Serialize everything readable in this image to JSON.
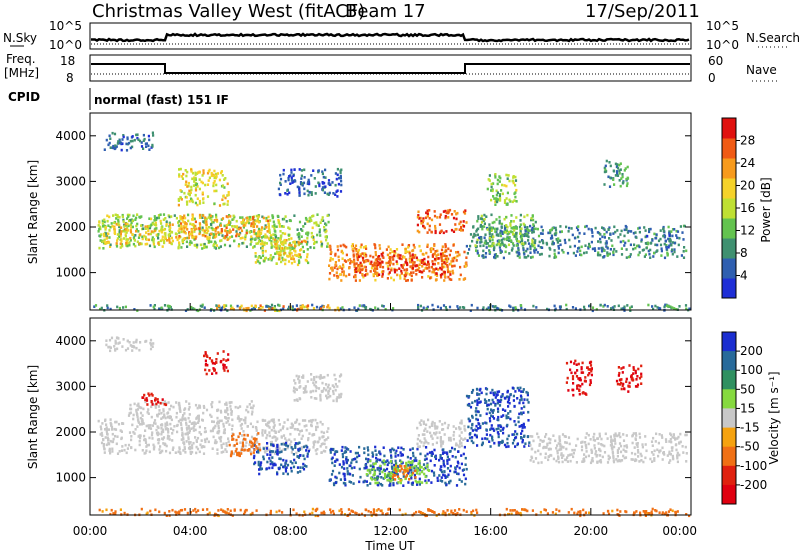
{
  "header": {
    "station": "Christmas Valley West (fitACF)",
    "beam": "Beam 17",
    "date": "17/Sep/2011"
  },
  "top_panel": {
    "left_label": "N.Sky",
    "left_ticks": [
      "10^5",
      "10^0"
    ],
    "right_label": "N.Search",
    "right_ticks": [
      "10^5",
      "10^0"
    ]
  },
  "freq_panel": {
    "left_label_line1": "Freq.",
    "left_label_line2": "[MHz]",
    "left_ticks": [
      "18",
      "8"
    ],
    "right_label": "Nave",
    "right_ticks": [
      "60",
      "0"
    ]
  },
  "cpid": {
    "label": "CPID",
    "mode_text": "normal (fast) 151 IF"
  },
  "x_axis": {
    "label": "Time UT",
    "ticks": [
      "00:00",
      "04:00",
      "08:00",
      "12:00",
      "16:00",
      "20:00",
      "00:00"
    ]
  },
  "chart_data": [
    {
      "type": "heatmap",
      "name": "power",
      "xlabel": "Time UT",
      "ylabel": "Slant Range [km]",
      "xlim": [
        0,
        24
      ],
      "ylim": [
        180,
        4500
      ],
      "y_ticks": [
        "1000",
        "2000",
        "3000",
        "4000"
      ],
      "y_tick_values": [
        1000,
        2000,
        3000,
        4000
      ],
      "colorbar": {
        "label": "Power [dB]",
        "ticks": [
          "4",
          "8",
          "12",
          "16",
          "20",
          "24",
          "28"
        ],
        "colors": [
          "#1f2fd6",
          "#2f5fb0",
          "#3f9070",
          "#63c34f",
          "#bfe033",
          "#f5d22a",
          "#f79a1c",
          "#f05a14",
          "#e0110f"
        ]
      },
      "regions": [
        {
          "t0": 0.3,
          "t1": 9.5,
          "r0": 1550,
          "r1": 2300,
          "value": 14
        },
        {
          "t0": 0.5,
          "t1": 3.8,
          "r0": 1650,
          "r1": 2100,
          "value": 20
        },
        {
          "t0": 3.5,
          "t1": 7.2,
          "r0": 1750,
          "r1": 2300,
          "value": 22
        },
        {
          "t0": 6.5,
          "t1": 8.7,
          "r0": 1200,
          "r1": 1900,
          "value": 16
        },
        {
          "t0": 7.3,
          "t1": 8.6,
          "r0": 1300,
          "r1": 1750,
          "value": 21
        },
        {
          "t0": 9.5,
          "t1": 15.0,
          "r0": 850,
          "r1": 1650,
          "value": 24
        },
        {
          "t0": 10.5,
          "t1": 14.5,
          "r0": 950,
          "r1": 1450,
          "value": 28
        },
        {
          "t0": 13.0,
          "t1": 15.0,
          "r0": 1900,
          "r1": 2400,
          "value": 27
        },
        {
          "t0": 15.0,
          "t1": 23.8,
          "r0": 1350,
          "r1": 2050,
          "value": 8
        },
        {
          "t0": 15.2,
          "t1": 17.8,
          "r0": 1600,
          "r1": 2300,
          "value": 12
        },
        {
          "t0": 15.8,
          "t1": 17.0,
          "r0": 2500,
          "r1": 3200,
          "value": 14
        },
        {
          "t0": 0.1,
          "t1": 23.9,
          "r0": 190,
          "r1": 320,
          "value": 8
        },
        {
          "t0": 5.0,
          "t1": 10.0,
          "r0": 190,
          "r1": 320,
          "value": 22
        },
        {
          "t0": 0.5,
          "t1": 2.5,
          "r0": 3700,
          "r1": 4100,
          "value": 6
        },
        {
          "t0": 7.5,
          "t1": 10.0,
          "r0": 2700,
          "r1": 3300,
          "value": 5
        },
        {
          "t0": 3.5,
          "t1": 5.5,
          "r0": 2500,
          "r1": 3300,
          "value": 18
        },
        {
          "t0": 20.5,
          "t1": 21.5,
          "r0": 2900,
          "r1": 3500,
          "value": 10
        }
      ]
    },
    {
      "type": "heatmap",
      "name": "velocity",
      "xlabel": "Time UT",
      "ylabel": "Slant Range [km]",
      "xlim": [
        0,
        24
      ],
      "ylim": [
        180,
        4500
      ],
      "y_ticks": [
        "1000",
        "2000",
        "3000",
        "4000"
      ],
      "y_tick_values": [
        1000,
        2000,
        3000,
        4000
      ],
      "colorbar": {
        "label": "Velocity [m s⁻¹]",
        "ticks": [
          "200",
          "100",
          "50",
          "15",
          "-15",
          "-50",
          "-100",
          "-200"
        ],
        "colors": [
          "#1b2ed0",
          "#286a9a",
          "#2f9060",
          "#86d93f",
          "#c8c8c8",
          "#f5a20f",
          "#f07015",
          "#e0210f",
          "#e00010"
        ]
      },
      "regions": [
        {
          "t0": 0.3,
          "t1": 9.5,
          "r0": 1550,
          "r1": 2300,
          "value": 0
        },
        {
          "t0": 1.5,
          "t1": 6.5,
          "r0": 2300,
          "r1": 2700,
          "value": 0
        },
        {
          "t0": 2.0,
          "t1": 3.0,
          "r0": 2600,
          "r1": 2900,
          "value": -200
        },
        {
          "t0": 4.5,
          "t1": 5.5,
          "r0": 3300,
          "r1": 3800,
          "value": -200
        },
        {
          "t0": 6.5,
          "t1": 8.7,
          "r0": 1100,
          "r1": 1800,
          "value": 200
        },
        {
          "t0": 5.5,
          "t1": 6.8,
          "r0": 1500,
          "r1": 2000,
          "value": -70
        },
        {
          "t0": 9.5,
          "t1": 15.0,
          "r0": 850,
          "r1": 1700,
          "value": 200
        },
        {
          "t0": 11.0,
          "t1": 13.5,
          "r0": 900,
          "r1": 1400,
          "value": 40
        },
        {
          "t0": 12.0,
          "t1": 13.0,
          "r0": 950,
          "r1": 1300,
          "value": -60
        },
        {
          "t0": 13.0,
          "t1": 15.0,
          "r0": 1700,
          "r1": 2300,
          "value": 0
        },
        {
          "t0": 15.0,
          "t1": 17.5,
          "r0": 1700,
          "r1": 3000,
          "value": 200
        },
        {
          "t0": 17.5,
          "t1": 23.8,
          "r0": 1350,
          "r1": 2000,
          "value": 0
        },
        {
          "t0": 0.1,
          "t1": 23.9,
          "r0": 190,
          "r1": 340,
          "value": -60
        },
        {
          "t0": 0.5,
          "t1": 2.5,
          "r0": 3800,
          "r1": 4100,
          "value": 0
        },
        {
          "t0": 8.0,
          "t1": 10.0,
          "r0": 2700,
          "r1": 3300,
          "value": 0
        },
        {
          "t0": 19.0,
          "t1": 20.0,
          "r0": 2800,
          "r1": 3600,
          "value": -200
        },
        {
          "t0": 21.0,
          "t1": 22.0,
          "r0": 2900,
          "r1": 3500,
          "value": -200
        }
      ]
    }
  ]
}
